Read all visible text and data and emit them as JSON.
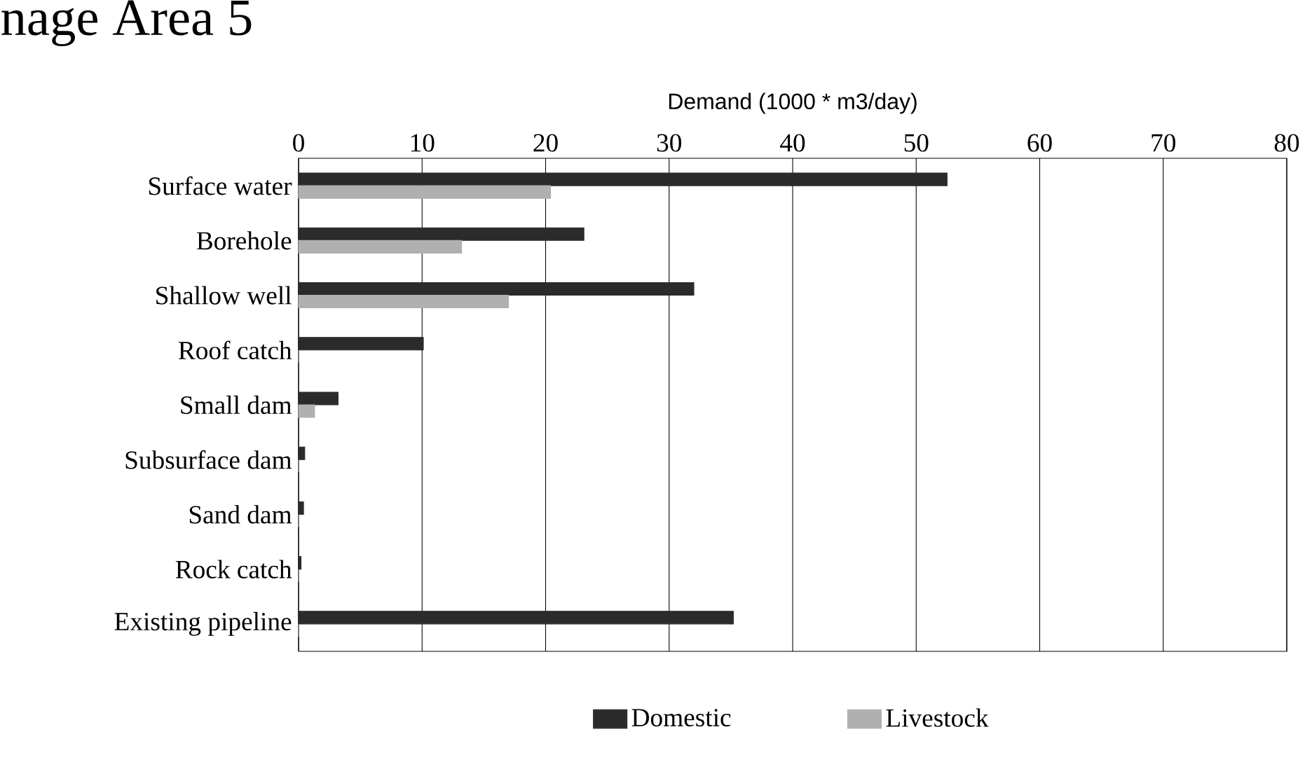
{
  "chart_data": {
    "type": "bar",
    "orientation": "horizontal",
    "title": "nage Area 5",
    "xlabel": "Demand (1000 * m3/day)",
    "categories": [
      "Surface water",
      "Borehole",
      "Shallow well",
      "Roof catch",
      "Small dam",
      "Subsurface dam",
      "Sand dam",
      "Rock catch",
      "Existing pipeline"
    ],
    "series": [
      {
        "name": "Domestic",
        "color": "#2b2b2b",
        "values": [
          52.5,
          23.1,
          32.0,
          10.1,
          3.2,
          0.5,
          0.4,
          0.2,
          35.2
        ]
      },
      {
        "name": "Livestock",
        "color": "#b0b0b0",
        "values": [
          20.4,
          13.2,
          17.0,
          0,
          1.3,
          0,
          0,
          0,
          0
        ]
      }
    ],
    "xlim": [
      0,
      80
    ],
    "xticks": [
      0,
      10,
      20,
      30,
      40,
      50,
      60,
      70,
      80
    ],
    "grid": "x",
    "legend": "bottom"
  }
}
